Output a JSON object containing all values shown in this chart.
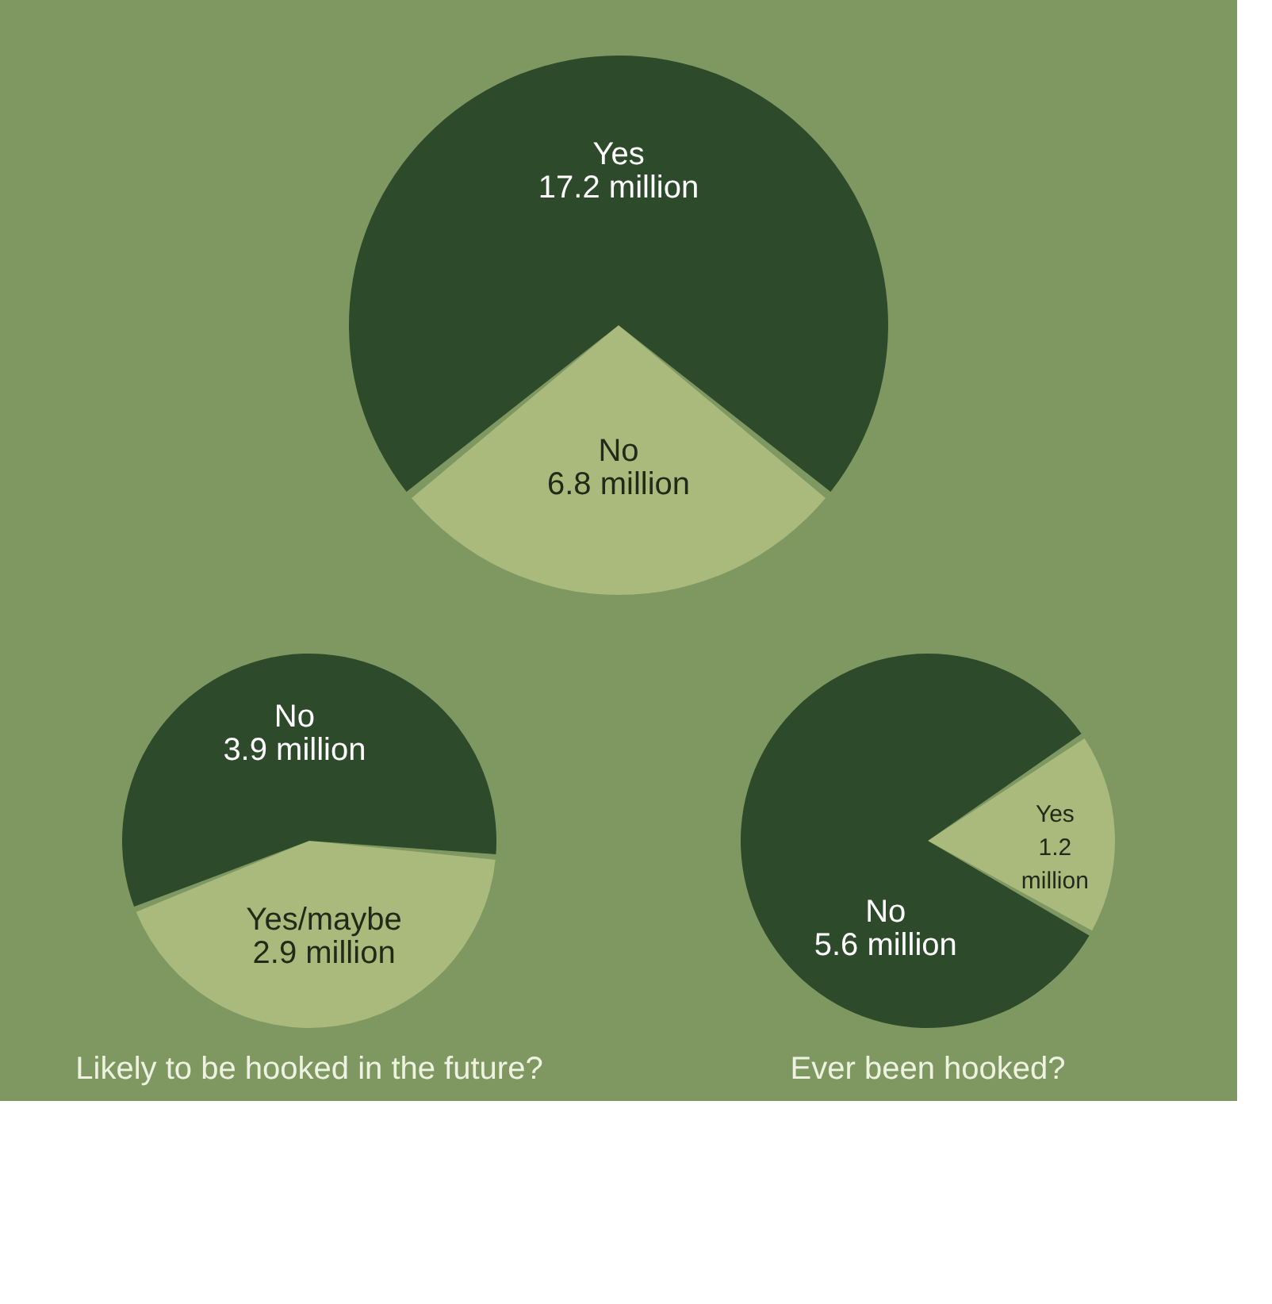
{
  "chart_data": [
    {
      "type": "pie",
      "categories": [
        "No",
        "Yes"
      ],
      "values": [
        6.8,
        17.2
      ],
      "colors": [
        "#a9ba7c",
        "#2d4a2b"
      ],
      "value_labels": [
        "6.8 million",
        "17.2 million"
      ]
    },
    {
      "type": "pie",
      "title": "Likely to be hooked in the future?",
      "categories": [
        "Yes/maybe",
        "No"
      ],
      "values": [
        2.9,
        3.9
      ],
      "colors": [
        "#a9ba7c",
        "#2d4a2b"
      ],
      "value_labels": [
        "2.9 million",
        "3.9 million"
      ]
    },
    {
      "type": "pie",
      "title": "Ever been hooked?",
      "categories": [
        "Yes",
        "No"
      ],
      "values": [
        1.2,
        5.6
      ],
      "colors": [
        "#a9ba7c",
        "#2d4a2b"
      ],
      "value_labels": [
        "1.2 million",
        "5.6 million"
      ]
    }
  ]
}
